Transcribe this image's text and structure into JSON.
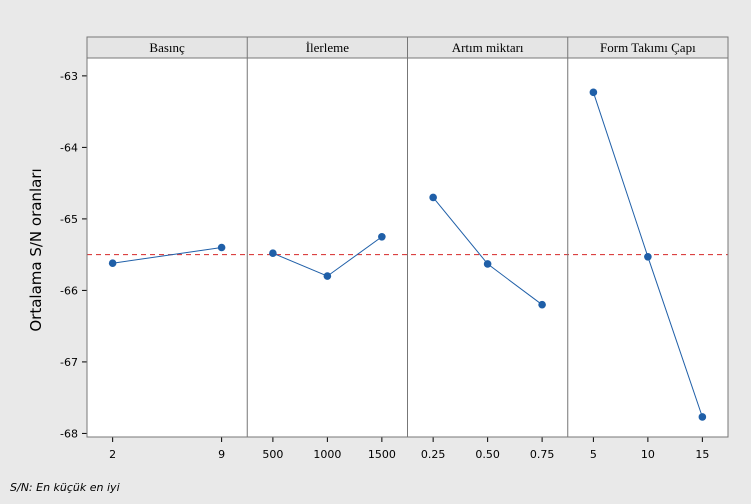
{
  "chart_data": {
    "type": "line",
    "ylabel": "Ortalama S/N oranları",
    "ylim": [
      -68.05,
      -62.75
    ],
    "yticks": [
      -63,
      -64,
      -65,
      -66,
      -67,
      -68
    ],
    "reference_line": {
      "value": -65.5,
      "color": "#d62728",
      "style": "dashed"
    },
    "line_color": "#1f5fa8",
    "marker_color": "#1f5fa8",
    "grid": false,
    "panels": [
      {
        "title": "Basınç",
        "categories": [
          "2",
          "9"
        ],
        "values": [
          -65.62,
          -65.4
        ]
      },
      {
        "title": "İlerleme",
        "categories": [
          "500",
          "1000",
          "1500"
        ],
        "values": [
          -65.48,
          -65.8,
          -65.25
        ]
      },
      {
        "title": "Artım miktarı",
        "categories": [
          "0.25",
          "0.50",
          "0.75"
        ],
        "values": [
          -64.7,
          -65.63,
          -66.2
        ]
      },
      {
        "title": "Form Takımı Çapı",
        "categories": [
          "5",
          "10",
          "15"
        ],
        "values": [
          -63.23,
          -65.53,
          -67.77
        ]
      }
    ]
  },
  "footnote": "S/N: En küçük en iyi"
}
